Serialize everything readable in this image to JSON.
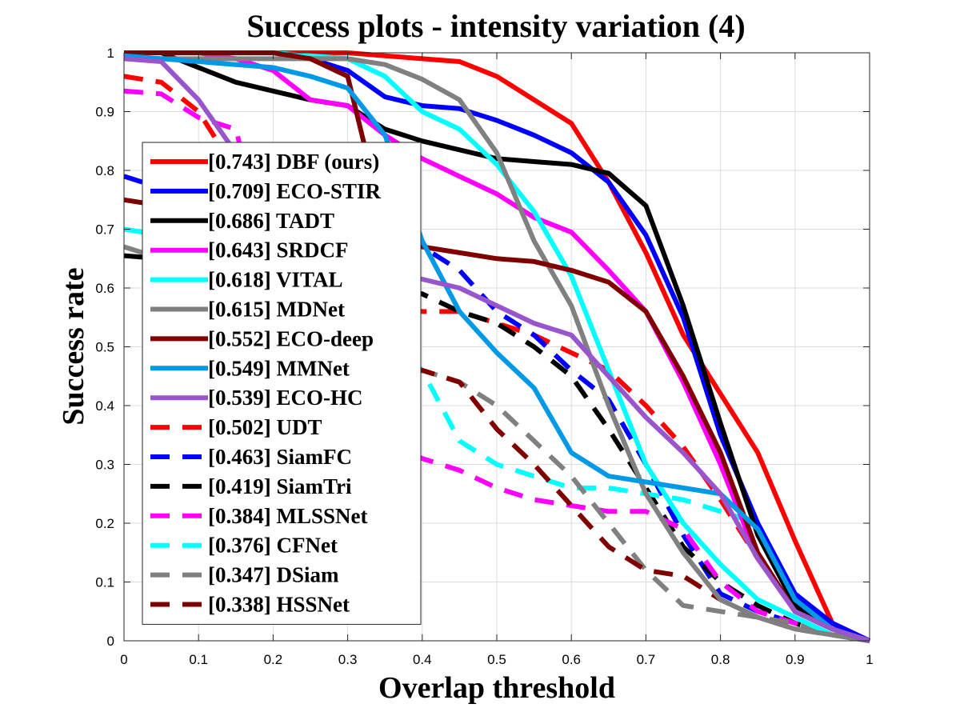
{
  "chart_data": {
    "type": "line",
    "title": "Success plots - intensity variation (4)",
    "xlabel": "Overlap threshold",
    "ylabel": "Success rate",
    "xlim": [
      0,
      1
    ],
    "ylim": [
      0,
      1
    ],
    "grid": true,
    "legend_position": "center-left",
    "xticks": [
      "0",
      "0.1",
      "0.2",
      "0.3",
      "0.4",
      "0.5",
      "0.6",
      "0.7",
      "0.8",
      "0.9",
      "1"
    ],
    "yticks": [
      "0",
      "0.1",
      "0.2",
      "0.3",
      "0.4",
      "0.5",
      "0.6",
      "0.7",
      "0.8",
      "0.9",
      "1"
    ],
    "x": [
      0,
      0.05,
      0.1,
      0.15,
      0.2,
      0.25,
      0.3,
      0.35,
      0.4,
      0.45,
      0.5,
      0.55,
      0.6,
      0.65,
      0.7,
      0.75,
      0.8,
      0.85,
      0.9,
      0.95,
      1
    ],
    "series": [
      {
        "name": "[0.743] DBF (ours)",
        "color": "#ff0000",
        "dash": false,
        "values": [
          1,
          1,
          1,
          1,
          1,
          1,
          1,
          0.995,
          0.99,
          0.985,
          0.96,
          0.92,
          0.88,
          0.78,
          0.66,
          0.52,
          0.42,
          0.32,
          0.17,
          0.03,
          0
        ]
      },
      {
        "name": "[0.709] ECO-STIR",
        "color": "#0000ff",
        "dash": false,
        "values": [
          1,
          1,
          1,
          1,
          1,
          0.99,
          0.97,
          0.925,
          0.91,
          0.905,
          0.885,
          0.86,
          0.83,
          0.78,
          0.69,
          0.55,
          0.35,
          0.2,
          0.08,
          0.03,
          0
        ]
      },
      {
        "name": "[0.686] TADT",
        "color": "#000000",
        "dash": false,
        "values": [
          1,
          1,
          0.975,
          0.95,
          0.935,
          0.92,
          0.91,
          0.87,
          0.85,
          0.835,
          0.82,
          0.815,
          0.81,
          0.795,
          0.74,
          0.57,
          0.37,
          0.18,
          0.06,
          0.02,
          0
        ]
      },
      {
        "name": "[0.643] SRDCF",
        "color": "#ff00ff",
        "dash": false,
        "values": [
          1,
          1,
          1,
          0.99,
          0.97,
          0.92,
          0.91,
          0.86,
          0.82,
          0.79,
          0.76,
          0.72,
          0.695,
          0.63,
          0.56,
          0.44,
          0.3,
          0.14,
          0.05,
          0.02,
          0
        ]
      },
      {
        "name": "[0.618] VITAL",
        "color": "#00ffff",
        "dash": false,
        "values": [
          1,
          1,
          1,
          1,
          1,
          0.995,
          0.99,
          0.96,
          0.9,
          0.87,
          0.81,
          0.73,
          0.62,
          0.46,
          0.3,
          0.2,
          0.13,
          0.07,
          0.04,
          0.01,
          0
        ]
      },
      {
        "name": "[0.615] MDNet",
        "color": "#808080",
        "dash": false,
        "values": [
          0.99,
          0.99,
          0.99,
          0.99,
          0.99,
          0.99,
          0.99,
          0.98,
          0.955,
          0.92,
          0.83,
          0.68,
          0.57,
          0.4,
          0.25,
          0.15,
          0.07,
          0.04,
          0.02,
          0.01,
          0
        ]
      },
      {
        "name": "[0.552] ECO-deep",
        "color": "#800000",
        "dash": false,
        "values": [
          1,
          1,
          1,
          1,
          1,
          0.99,
          0.96,
          0.7,
          0.67,
          0.66,
          0.65,
          0.645,
          0.63,
          0.61,
          0.56,
          0.45,
          0.32,
          0.15,
          0.05,
          0.02,
          0
        ]
      },
      {
        "name": "[0.549] MMNet",
        "color": "#0099e6",
        "dash": false,
        "values": [
          0.995,
          0.99,
          0.985,
          0.98,
          0.975,
          0.96,
          0.94,
          0.86,
          0.68,
          0.56,
          0.49,
          0.43,
          0.32,
          0.28,
          0.27,
          0.26,
          0.25,
          0.19,
          0.07,
          0.02,
          0
        ]
      },
      {
        "name": "[0.539] ECO-HC",
        "color": "#9955cc",
        "dash": false,
        "values": [
          0.99,
          0.985,
          0.92,
          0.83,
          0.74,
          0.68,
          0.65,
          0.63,
          0.615,
          0.6,
          0.57,
          0.54,
          0.52,
          0.45,
          0.38,
          0.32,
          0.25,
          0.14,
          0.05,
          0.02,
          0
        ]
      },
      {
        "name": "[0.502] UDT",
        "color": "#ff0000",
        "dash": true,
        "values": [
          0.96,
          0.95,
          0.9,
          0.8,
          0.7,
          0.64,
          0.6,
          0.57,
          0.56,
          0.56,
          0.54,
          0.52,
          0.49,
          0.46,
          0.4,
          0.33,
          0.24,
          0.14,
          0.05,
          0.02,
          0
        ]
      },
      {
        "name": "[0.463] SiamFC",
        "color": "#0000ff",
        "dash": true,
        "values": [
          0.79,
          0.77,
          0.75,
          0.74,
          0.73,
          0.71,
          0.69,
          0.68,
          0.67,
          0.63,
          0.56,
          0.52,
          0.46,
          0.41,
          0.3,
          0.18,
          0.08,
          0.05,
          0.03,
          0.01,
          0
        ]
      },
      {
        "name": "[0.419] SiamTri",
        "color": "#000000",
        "dash": true,
        "values": [
          0.655,
          0.65,
          0.64,
          0.63,
          0.63,
          0.62,
          0.61,
          0.6,
          0.59,
          0.56,
          0.54,
          0.5,
          0.45,
          0.36,
          0.26,
          0.16,
          0.1,
          0.06,
          0.03,
          0.01,
          0
        ]
      },
      {
        "name": "[0.384] MLSSNet",
        "color": "#ff00ff",
        "dash": true,
        "values": [
          0.935,
          0.93,
          0.89,
          0.87,
          0.62,
          0.45,
          0.38,
          0.34,
          0.31,
          0.29,
          0.26,
          0.24,
          0.23,
          0.22,
          0.22,
          0.19,
          0.1,
          0.05,
          0.03,
          0.01,
          0
        ]
      },
      {
        "name": "[0.376] CFNet",
        "color": "#00ffff",
        "dash": true,
        "values": [
          0.7,
          0.69,
          0.68,
          0.66,
          0.63,
          0.6,
          0.56,
          0.52,
          0.46,
          0.34,
          0.3,
          0.28,
          0.26,
          0.26,
          0.25,
          0.24,
          0.22,
          0.2,
          0.07,
          0.02,
          0
        ]
      },
      {
        "name": "[0.347] DSiam",
        "color": "#808080",
        "dash": true,
        "values": [
          0.67,
          0.65,
          0.62,
          0.59,
          0.56,
          0.53,
          0.5,
          0.48,
          0.46,
          0.44,
          0.4,
          0.34,
          0.28,
          0.2,
          0.12,
          0.06,
          0.05,
          0.04,
          0.03,
          0.01,
          0
        ]
      },
      {
        "name": "[0.338] HSSNet",
        "color": "#800000",
        "dash": true,
        "values": [
          0.75,
          0.74,
          0.72,
          0.7,
          0.65,
          0.56,
          0.5,
          0.47,
          0.46,
          0.44,
          0.36,
          0.3,
          0.23,
          0.16,
          0.12,
          0.11,
          0.07,
          0.04,
          0.02,
          0.01,
          0
        ]
      }
    ]
  }
}
